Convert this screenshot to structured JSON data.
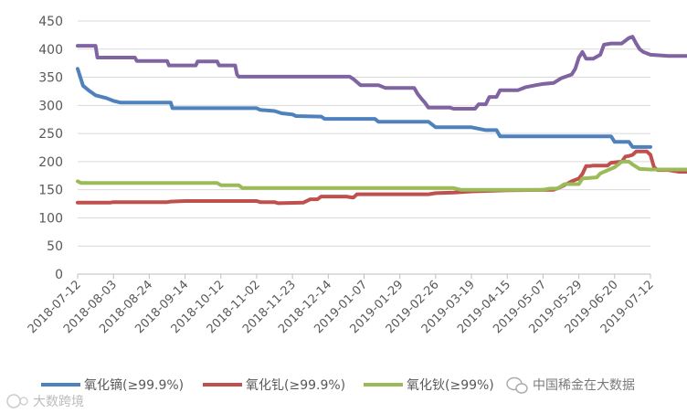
{
  "chart_data": {
    "type": "line",
    "title": "",
    "xlabel": "",
    "ylabel": "",
    "ylim": [
      0,
      450
    ],
    "yticks": [
      0,
      50,
      100,
      150,
      200,
      250,
      300,
      350,
      400,
      450
    ],
    "grid": true,
    "legend_position": "bottom",
    "x_tick_labels": [
      "2018-07-12",
      "2018-08-03",
      "2018-08-24",
      "2018-09-14",
      "2018-10-12",
      "2018-11-02",
      "2018-11-23",
      "2018-12-14",
      "2019-01-07",
      "2019-01-29",
      "2019-02-26",
      "2019-03-19",
      "2019-04-15",
      "2019-05-07",
      "2019-05-29",
      "2019-06-20",
      "2019-07-12"
    ],
    "series": [
      {
        "name": "氧化镝(≥99.9%)",
        "color": "#4F81BD",
        "values": [
          [
            0,
            365
          ],
          [
            0.15,
            335
          ],
          [
            0.3,
            327
          ],
          [
            0.5,
            318
          ],
          [
            0.8,
            313
          ],
          [
            1,
            308
          ],
          [
            1.2,
            305
          ],
          [
            1.7,
            305
          ],
          [
            1.75,
            305
          ],
          [
            2,
            305
          ],
          [
            2.6,
            305
          ],
          [
            2.65,
            295
          ],
          [
            4,
            295
          ],
          [
            5,
            295
          ],
          [
            5.1,
            292
          ],
          [
            5.5,
            290
          ],
          [
            5.7,
            286
          ],
          [
            6,
            284
          ],
          [
            6.1,
            281
          ],
          [
            6.8,
            280
          ],
          [
            6.9,
            276
          ],
          [
            8.3,
            276
          ],
          [
            8.4,
            271
          ],
          [
            9.8,
            271
          ],
          [
            9.9,
            266
          ],
          [
            10,
            261
          ],
          [
            11,
            261
          ],
          [
            11.4,
            256
          ],
          [
            11.7,
            256
          ],
          [
            11.8,
            245
          ],
          [
            14.9,
            245
          ],
          [
            15,
            235
          ],
          [
            15.4,
            235
          ],
          [
            15.5,
            226
          ],
          [
            16,
            226
          ]
        ]
      },
      {
        "name": "氧化钆(≥99.9%)",
        "color": "#C0504D",
        "values": [
          [
            0,
            127
          ],
          [
            0.9,
            127
          ],
          [
            1,
            128
          ],
          [
            1.5,
            128
          ],
          [
            2,
            128
          ],
          [
            2.5,
            128
          ],
          [
            2.6,
            129
          ],
          [
            3,
            130
          ],
          [
            5,
            130
          ],
          [
            5.1,
            128
          ],
          [
            5.5,
            128
          ],
          [
            5.6,
            126
          ],
          [
            6.3,
            127
          ],
          [
            6.5,
            133
          ],
          [
            6.7,
            133
          ],
          [
            6.8,
            138
          ],
          [
            7.5,
            138
          ],
          [
            7.7,
            136
          ],
          [
            7.8,
            142
          ],
          [
            9.8,
            142
          ],
          [
            10,
            144
          ],
          [
            10.5,
            145
          ],
          [
            11,
            147
          ],
          [
            11.5,
            148
          ],
          [
            12,
            149
          ],
          [
            13.3,
            150
          ],
          [
            13.5,
            155
          ],
          [
            13.8,
            165
          ],
          [
            14,
            170
          ],
          [
            14.1,
            178
          ],
          [
            14.2,
            192
          ],
          [
            14.3,
            192
          ],
          [
            14.4,
            193
          ],
          [
            14.8,
            193
          ],
          [
            14.9,
            198
          ],
          [
            15.2,
            200
          ],
          [
            15.3,
            209
          ],
          [
            15.4,
            210
          ],
          [
            15.5,
            212
          ],
          [
            15.6,
            218
          ],
          [
            15.9,
            218
          ],
          [
            16,
            212
          ],
          [
            16.1,
            190
          ],
          [
            16.2,
            185
          ],
          [
            16.5,
            185
          ],
          [
            16.8,
            182
          ],
          [
            17,
            182
          ]
        ]
      },
      {
        "name": "氧化钬(≥99%)",
        "color": "#9BBB59",
        "values": [
          [
            0,
            165
          ],
          [
            0.1,
            162
          ],
          [
            1,
            162
          ],
          [
            3,
            162
          ],
          [
            3.9,
            162
          ],
          [
            4,
            158
          ],
          [
            4.5,
            158
          ],
          [
            4.6,
            153
          ],
          [
            5,
            153
          ],
          [
            8,
            153
          ],
          [
            10.5,
            153
          ],
          [
            10.7,
            150
          ],
          [
            11,
            150
          ],
          [
            12,
            150
          ],
          [
            13,
            150
          ],
          [
            13.2,
            152
          ],
          [
            13.4,
            152
          ],
          [
            13.6,
            160
          ],
          [
            14,
            160
          ],
          [
            14.1,
            170
          ],
          [
            14.5,
            172
          ],
          [
            14.6,
            179
          ],
          [
            15,
            190
          ],
          [
            15.2,
            200
          ],
          [
            15.4,
            200
          ],
          [
            15.5,
            195
          ],
          [
            15.7,
            187
          ],
          [
            16,
            186
          ],
          [
            16.3,
            186
          ],
          [
            17,
            186
          ]
        ]
      },
      {
        "name": "",
        "color": "#8064A2",
        "values": [
          [
            0,
            406
          ],
          [
            0.5,
            406
          ],
          [
            0.55,
            385
          ],
          [
            1.6,
            385
          ],
          [
            1.65,
            379
          ],
          [
            2.5,
            379
          ],
          [
            2.55,
            371
          ],
          [
            3.3,
            371
          ],
          [
            3.35,
            378
          ],
          [
            3.9,
            378
          ],
          [
            3.95,
            371
          ],
          [
            4.4,
            371
          ],
          [
            4.45,
            355
          ],
          [
            4.5,
            351
          ],
          [
            6.2,
            351
          ],
          [
            7.6,
            351
          ],
          [
            7.7,
            347
          ],
          [
            7.9,
            336
          ],
          [
            8.4,
            336
          ],
          [
            8.6,
            331
          ],
          [
            9.4,
            331
          ],
          [
            9.5,
            320
          ],
          [
            9.6,
            312
          ],
          [
            9.7,
            305
          ],
          [
            9.8,
            296
          ],
          [
            10.4,
            296
          ],
          [
            10.5,
            294
          ],
          [
            11.1,
            294
          ],
          [
            11.2,
            302
          ],
          [
            11.4,
            302
          ],
          [
            11.5,
            315
          ],
          [
            11.7,
            315
          ],
          [
            11.8,
            327
          ],
          [
            12.3,
            327
          ],
          [
            12.5,
            332
          ],
          [
            12.8,
            336
          ],
          [
            13,
            338
          ],
          [
            13.3,
            340
          ],
          [
            13.5,
            348
          ],
          [
            13.8,
            355
          ],
          [
            13.9,
            365
          ],
          [
            14,
            385
          ],
          [
            14.1,
            395
          ],
          [
            14.2,
            383
          ],
          [
            14.4,
            383
          ],
          [
            14.6,
            390
          ],
          [
            14.7,
            408
          ],
          [
            14.9,
            410
          ],
          [
            15.2,
            410
          ],
          [
            15.4,
            420
          ],
          [
            15.5,
            422
          ],
          [
            15.6,
            410
          ],
          [
            15.7,
            400
          ],
          [
            15.8,
            395
          ],
          [
            16,
            390
          ],
          [
            16.5,
            388
          ],
          [
            17,
            388
          ]
        ]
      }
    ]
  },
  "legend": {
    "items": [
      "氧化镝(≥99.9%)",
      "氧化钆(≥99.9%)",
      "氧化钬(≥99%)"
    ]
  },
  "watermarks": {
    "top_right": "中国稀金在大数据",
    "bottom_left": "大数跨境"
  }
}
